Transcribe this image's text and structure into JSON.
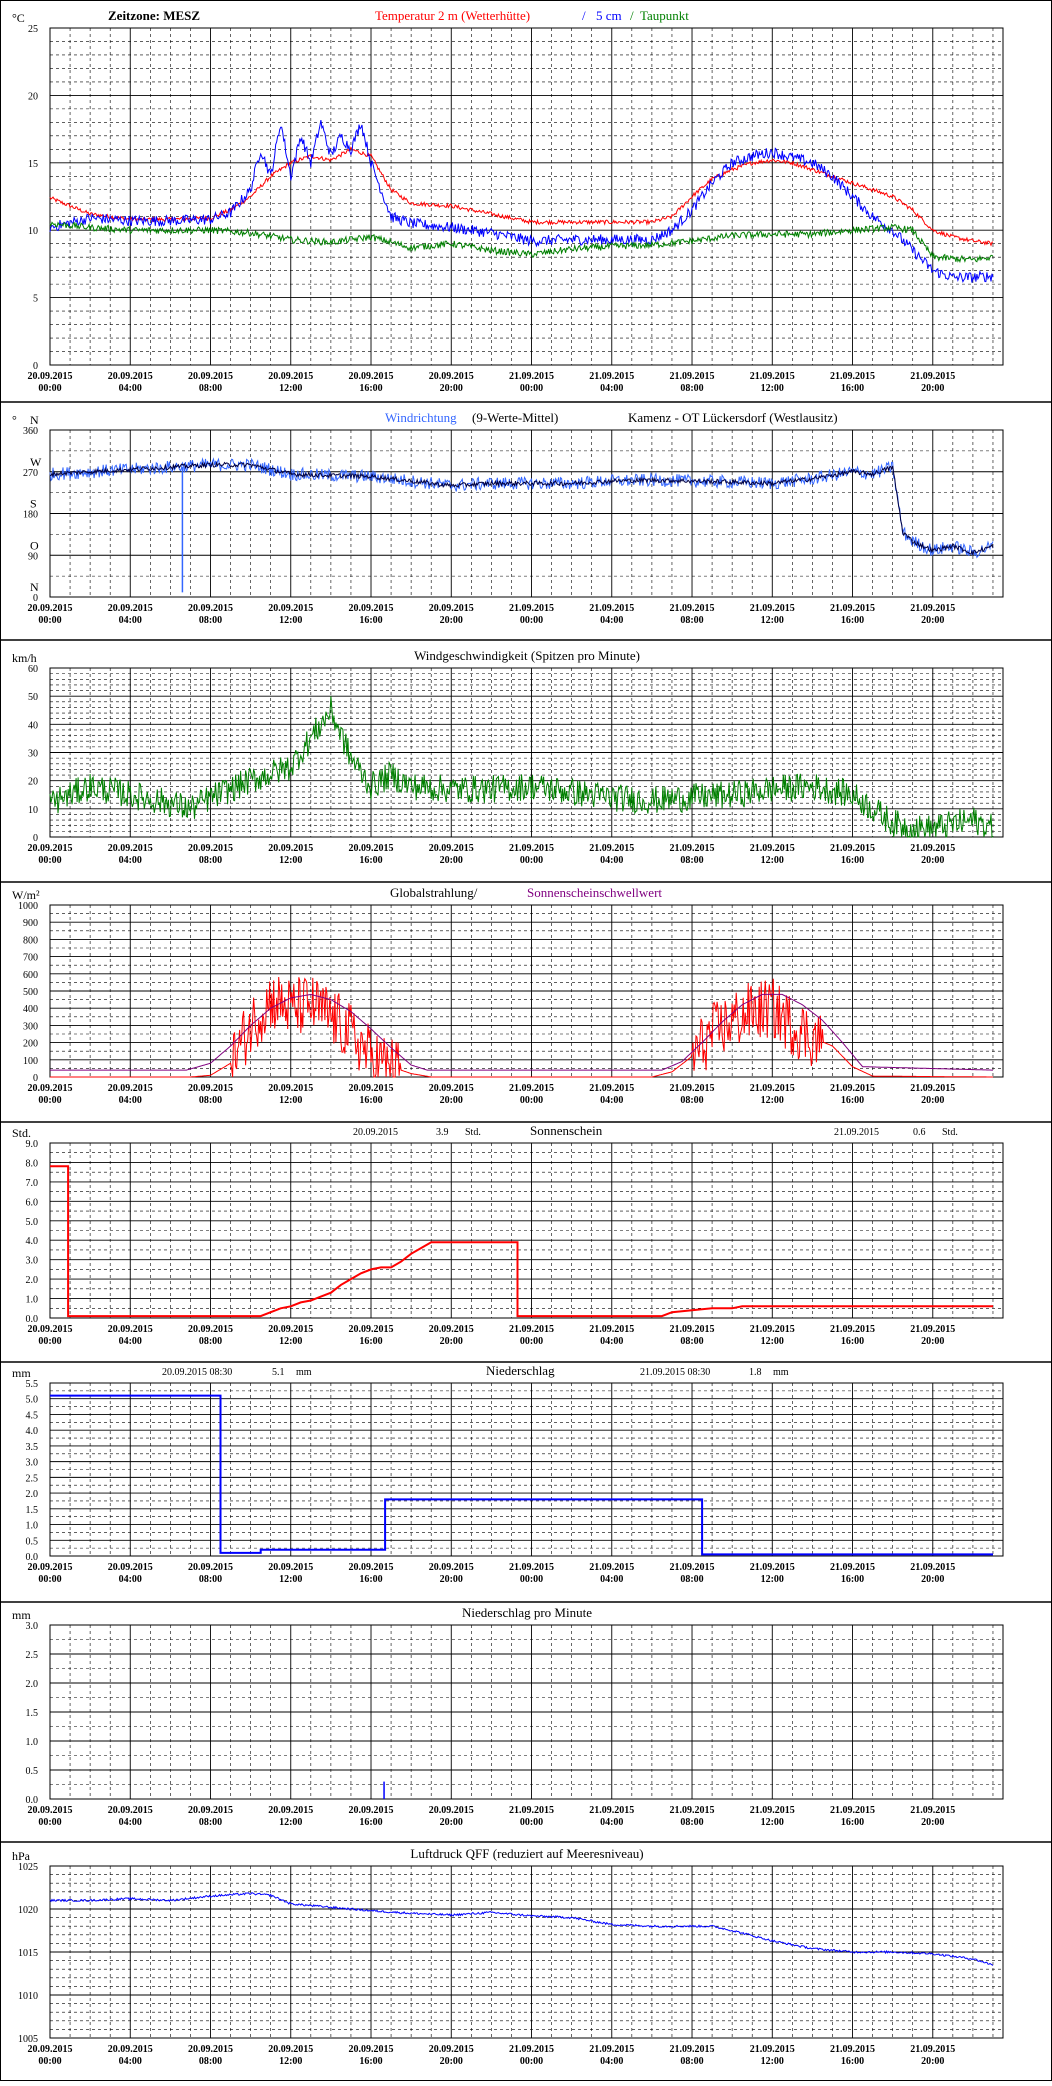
{
  "x_ticks": [
    [
      "20.09.2015",
      "00:00"
    ],
    [
      "20.09.2015",
      "04:00"
    ],
    [
      "20.09.2015",
      "08:00"
    ],
    [
      "20.09.2015",
      "12:00"
    ],
    [
      "20.09.2015",
      "16:00"
    ],
    [
      "20.09.2015",
      "20:00"
    ],
    [
      "21.09.2015",
      "00:00"
    ],
    [
      "21.09.2015",
      "04:00"
    ],
    [
      "21.09.2015",
      "08:00"
    ],
    [
      "21.09.2015",
      "12:00"
    ],
    [
      "21.09.2015",
      "16:00"
    ],
    [
      "21.09.2015",
      "20:00"
    ]
  ],
  "colors": {
    "red": "#ff0000",
    "blue": "#0000ff",
    "lightblue": "#3366ff",
    "green": "#008000",
    "navy": "#000040",
    "purple": "#800080",
    "grid": "#000000"
  },
  "chart_data": [
    {
      "id": "temp",
      "type": "line",
      "unit": "°C",
      "ylim": [
        0,
        25
      ],
      "yticks": [
        0,
        5,
        10,
        15,
        20,
        25
      ],
      "minor": 1,
      "header": [
        {
          "text": "Zeitzone: MESZ",
          "color": "#000000"
        },
        {
          "text": "Temperatur 2 m (Wetterhütte)",
          "color": "#ff0000"
        },
        {
          "text": "/",
          "color": "#0000ff"
        },
        {
          "text": "5 cm",
          "color": "#0000ff"
        },
        {
          "text": "/",
          "color": "#008000"
        },
        {
          "text": "Taupunkt",
          "color": "#008000"
        }
      ],
      "series": [
        {
          "name": "Temperatur 2 m (Wetterhütte)",
          "color": "#ff0000",
          "noise": 0.15,
          "x": [
            0,
            2,
            4,
            6,
            8,
            9,
            10,
            11,
            12,
            13,
            14,
            15,
            16,
            17,
            18,
            20,
            22,
            24,
            26,
            28,
            30,
            31,
            32,
            33,
            34,
            35,
            36,
            37,
            38,
            39,
            40,
            41,
            42,
            43,
            44,
            45,
            46,
            47
          ],
          "y": [
            12.4,
            11.2,
            10.8,
            10.8,
            10.9,
            11.5,
            12.5,
            14,
            15,
            15.5,
            15.2,
            16,
            15.5,
            13,
            12,
            11.8,
            11.2,
            10.6,
            10.6,
            10.6,
            10.6,
            11,
            12.5,
            13.8,
            14.5,
            15,
            15.2,
            15,
            14.5,
            14,
            13.5,
            13,
            12.5,
            11.5,
            10,
            9.5,
            9.2,
            9
          ]
        },
        {
          "name": "5 cm",
          "color": "#0000ff",
          "noise": 0.4,
          "x": [
            0,
            2,
            4,
            6,
            8,
            9,
            10,
            10.5,
            11,
            11.5,
            12,
            12.5,
            13,
            13.5,
            14,
            14.5,
            15,
            15.5,
            16,
            17,
            18,
            20,
            22,
            24,
            26,
            28,
            30,
            31,
            32,
            33,
            34,
            35,
            36,
            37,
            38,
            39,
            40,
            41,
            42,
            43,
            44,
            45,
            46,
            47
          ],
          "y": [
            10.2,
            10.9,
            10.7,
            10.7,
            10.8,
            11.3,
            13,
            16,
            14,
            18,
            14,
            17,
            15,
            18,
            15.5,
            17,
            16,
            18,
            15,
            11,
            10.5,
            10.2,
            9.8,
            9.2,
            9.3,
            9.3,
            9.3,
            10,
            11.5,
            13.5,
            15,
            15.5,
            15.8,
            15.4,
            15,
            14,
            12.5,
            11,
            10,
            8.5,
            7,
            6.5,
            6.5,
            6.6
          ]
        },
        {
          "name": "Taupunkt",
          "color": "#008000",
          "noise": 0.25,
          "x": [
            0,
            2,
            4,
            6,
            8,
            10,
            12,
            14,
            16,
            18,
            20,
            22,
            24,
            26,
            28,
            30,
            32,
            34,
            36,
            38,
            40,
            42,
            43,
            44,
            46,
            47
          ],
          "y": [
            10.5,
            10.2,
            10,
            10,
            10,
            9.8,
            9.3,
            9.1,
            9.5,
            8.7,
            9,
            8.5,
            8.2,
            8.6,
            8.8,
            8.9,
            9.2,
            9.6,
            9.7,
            9.7,
            10,
            10.2,
            10,
            8,
            7.8,
            8
          ]
        }
      ]
    },
    {
      "id": "dir",
      "type": "line",
      "header": [
        {
          "text": "Windrichtung",
          "color": "#3366ff"
        },
        {
          "text": "(9-Werte-Mittel)",
          "color": "#000000"
        },
        {
          "text": "Kamenz - OT Lückersdorf (Westlausitz)",
          "color": "#000000"
        }
      ],
      "unit": "°",
      "ylim": [
        0,
        360
      ],
      "yticks": [
        0,
        90,
        180,
        270,
        360
      ],
      "minor": 45,
      "ylabels": [
        {
          "v": 360,
          "t": "360"
        },
        {
          "v": 270,
          "t": "270"
        },
        {
          "v": 180,
          "t": "180"
        },
        {
          "v": 90,
          "t": "90"
        },
        {
          "v": 0,
          "t": "0"
        }
      ],
      "compass": [
        {
          "v": 360,
          "t": "N"
        },
        {
          "v": 270,
          "t": "W"
        },
        {
          "v": 180,
          "t": "S"
        },
        {
          "v": 90,
          "t": "O"
        },
        {
          "v": 0,
          "t": "N"
        }
      ],
      "series": [
        {
          "name": "Windrichtung",
          "color": "#3366ff",
          "noise": 14,
          "x": [
            0,
            2,
            4,
            6,
            8,
            10,
            12,
            14,
            16,
            18,
            20,
            22,
            24,
            26,
            28,
            30,
            32,
            34,
            36,
            38,
            40,
            41,
            42,
            42.5,
            43,
            44,
            45,
            46,
            47
          ],
          "y": [
            265,
            270,
            275,
            280,
            285,
            285,
            265,
            262,
            260,
            250,
            240,
            245,
            245,
            245,
            250,
            252,
            250,
            248,
            245,
            255,
            270,
            265,
            280,
            140,
            120,
            100,
            110,
            95,
            110
          ]
        },
        {
          "name": "9-Werte-Mittel",
          "color": "#000040",
          "noise": 5,
          "x": [
            0,
            2,
            4,
            6,
            8,
            10,
            12,
            14,
            16,
            18,
            20,
            22,
            24,
            26,
            28,
            30,
            32,
            34,
            36,
            38,
            40,
            41,
            42,
            42.5,
            43,
            44,
            45,
            46,
            47
          ],
          "y": [
            265,
            270,
            275,
            280,
            285,
            285,
            265,
            262,
            260,
            250,
            240,
            245,
            245,
            245,
            250,
            252,
            250,
            248,
            245,
            255,
            270,
            265,
            280,
            140,
            120,
            100,
            110,
            95,
            110
          ]
        }
      ],
      "spike": {
        "x": 6.6,
        "y": 10
      }
    },
    {
      "id": "wind",
      "type": "line",
      "header": [
        {
          "text": "Windgeschwindigkeit (Spitzen pro Minute)",
          "color": "#000000"
        }
      ],
      "unit": "km/h",
      "ylim": [
        0,
        60
      ],
      "yticks": [
        0,
        10,
        20,
        30,
        40,
        50,
        60
      ],
      "minor": 2,
      "series": [
        {
          "name": "Windgeschwindigkeit",
          "color": "#008000",
          "noise": 5,
          "x": [
            0,
            2,
            4,
            6,
            7,
            8,
            10,
            12,
            13,
            14,
            15,
            16,
            17,
            18,
            20,
            22,
            24,
            26,
            28,
            30,
            32,
            34,
            36,
            38,
            40,
            41,
            42,
            43,
            44,
            46,
            47
          ],
          "y": [
            12,
            18,
            15,
            12,
            10,
            14,
            20,
            25,
            35,
            45,
            28,
            18,
            22,
            18,
            17,
            17,
            18,
            16,
            14,
            13,
            14,
            15,
            17,
            18,
            15,
            10,
            5,
            3,
            3,
            6,
            3
          ]
        }
      ]
    },
    {
      "id": "rad",
      "type": "line",
      "header": [
        {
          "text": "Globalstrahlung/",
          "color": "#000000"
        },
        {
          "text": "Sonnenscheinschwellwert",
          "color": "#800080"
        }
      ],
      "unit": "W/m²",
      "ylim": [
        0,
        1000
      ],
      "yticks": [
        0,
        100,
        200,
        300,
        400,
        500,
        600,
        700,
        800,
        900,
        1000
      ],
      "minor": 50,
      "series": [
        {
          "name": "Globalstrahlung",
          "color": "#ff0000",
          "noise": 180,
          "x": [
            0,
            7,
            8,
            9,
            10,
            11,
            12,
            13,
            14,
            15,
            16,
            17,
            18,
            19,
            24,
            30,
            31,
            32,
            33,
            34,
            35,
            36,
            37,
            38,
            39,
            40,
            41,
            47
          ],
          "y": [
            0,
            0,
            10,
            80,
            300,
            450,
            400,
            420,
            350,
            250,
            120,
            60,
            20,
            0,
            0,
            0,
            30,
            120,
            250,
            330,
            380,
            400,
            300,
            230,
            180,
            60,
            5,
            0
          ],
          "noiseRange": [
            9,
            17.5
          ],
          "noiseRange2": [
            32,
            38.5
          ]
        },
        {
          "name": "Sonnenscheinschwellwert",
          "color": "#800080",
          "noise": 0,
          "x": [
            0,
            6.8,
            8,
            9,
            10,
            11,
            12,
            13,
            14,
            15,
            16,
            17,
            18,
            18.8,
            30.5,
            31.5,
            32.5,
            33.5,
            34.5,
            35.5,
            36.5,
            37.5,
            38.5,
            39.5,
            40.5,
            47
          ],
          "y": [
            40,
            40,
            80,
            180,
            300,
            400,
            460,
            480,
            450,
            380,
            280,
            170,
            70,
            40,
            40,
            90,
            200,
            320,
            420,
            480,
            480,
            420,
            330,
            200,
            60,
            40
          ]
        }
      ]
    },
    {
      "id": "sun",
      "type": "step",
      "header": [
        {
          "text": "20.09.2015",
          "color": "#000000"
        },
        {
          "text": "3.9",
          "color": "#000000"
        },
        {
          "text": "Std.",
          "color": "#000000"
        },
        {
          "text": "Sonnenschein",
          "color": "#000000"
        },
        {
          "text": "21.09.2015",
          "color": "#000000"
        },
        {
          "text": "0.6",
          "color": "#000000"
        },
        {
          "text": "Std.",
          "color": "#000000"
        }
      ],
      "unit": "Std.",
      "ylim": [
        0,
        9
      ],
      "yticks": [
        0,
        1,
        2,
        3,
        4,
        5,
        6,
        7,
        8,
        9
      ],
      "ytickfmt": 1,
      "minor": 0.5,
      "series": [
        {
          "name": "Sonnenschein",
          "color": "#ff0000",
          "x": [
            0,
            0.9,
            0.9,
            10.5,
            11,
            11.5,
            12,
            12.5,
            13,
            13.5,
            14,
            14.5,
            15,
            15.5,
            16,
            16.5,
            17,
            17.5,
            18,
            18.5,
            19,
            23.3,
            23.3,
            30.5,
            31,
            32,
            33,
            34,
            34.5,
            47
          ],
          "y": [
            7.8,
            7.8,
            0.1,
            0.1,
            0.3,
            0.5,
            0.6,
            0.8,
            0.9,
            1.1,
            1.3,
            1.7,
            2.0,
            2.3,
            2.5,
            2.6,
            2.6,
            2.9,
            3.3,
            3.6,
            3.9,
            3.9,
            0.1,
            0.1,
            0.3,
            0.4,
            0.5,
            0.5,
            0.6,
            0.6
          ]
        }
      ]
    },
    {
      "id": "precip",
      "type": "step",
      "header": [
        {
          "text": "20.09.2015 08:30",
          "color": "#000000"
        },
        {
          "text": "5.1",
          "color": "#000000"
        },
        {
          "text": "mm",
          "color": "#000000"
        },
        {
          "text": "Niederschlag",
          "color": "#000000"
        },
        {
          "text": "21.09.2015 08:30",
          "color": "#000000"
        },
        {
          "text": "1.8",
          "color": "#000000"
        },
        {
          "text": "mm",
          "color": "#000000"
        }
      ],
      "unit": "mm",
      "ylim": [
        0,
        5.5
      ],
      "yticks": [
        0,
        0.5,
        1,
        1.5,
        2,
        2.5,
        3,
        3.5,
        4,
        4.5,
        5,
        5.5
      ],
      "ytickfmt": 1,
      "minor": 0.25,
      "series": [
        {
          "name": "Niederschlag",
          "color": "#0000ff",
          "x": [
            0,
            8.5,
            8.5,
            10.5,
            10.5,
            16.7,
            16.7,
            32.5,
            32.5,
            47
          ],
          "y": [
            5.1,
            5.1,
            0.1,
            0.1,
            0.2,
            0.2,
            1.8,
            1.8,
            0.05,
            0.05
          ]
        }
      ]
    },
    {
      "id": "precipmin",
      "type": "bars",
      "header": [
        {
          "text": "Niederschlag pro Minute",
          "color": "#000000"
        }
      ],
      "unit": "mm",
      "ylim": [
        0,
        3
      ],
      "yticks": [
        0,
        0.5,
        1,
        1.5,
        2,
        2.5,
        3
      ],
      "ytickfmt": 1,
      "minor": 0.25,
      "series": [
        {
          "name": "Niederschlag pro Minute",
          "color": "#0000ff",
          "x": [
            16.65
          ],
          "y": [
            0.3
          ]
        }
      ]
    },
    {
      "id": "pressure",
      "type": "line",
      "header": [
        {
          "text": "Luftdruck QFF (reduziert auf Meeresniveau)",
          "color": "#000000"
        }
      ],
      "unit": "hPa",
      "ylim": [
        1005,
        1025
      ],
      "yticks": [
        1005,
        1010,
        1015,
        1020,
        1025
      ],
      "minor": 1,
      "series": [
        {
          "name": "Luftdruck QFF",
          "color": "#0000ff",
          "noise": 0.12,
          "x": [
            0,
            2,
            4,
            6,
            8,
            10,
            11,
            12,
            14,
            16,
            18,
            20,
            22,
            24,
            26,
            28,
            30,
            32,
            33,
            34,
            36,
            38,
            40,
            42,
            44,
            46,
            47
          ],
          "y": [
            1021,
            1021,
            1021.2,
            1021,
            1021.5,
            1021.8,
            1021.6,
            1020.6,
            1020.2,
            1019.8,
            1019.5,
            1019.3,
            1019.6,
            1019.2,
            1019,
            1018.2,
            1018,
            1018,
            1018,
            1017.5,
            1016.3,
            1015.4,
            1015,
            1015,
            1014.8,
            1014.2,
            1013.5
          ]
        }
      ]
    }
  ]
}
